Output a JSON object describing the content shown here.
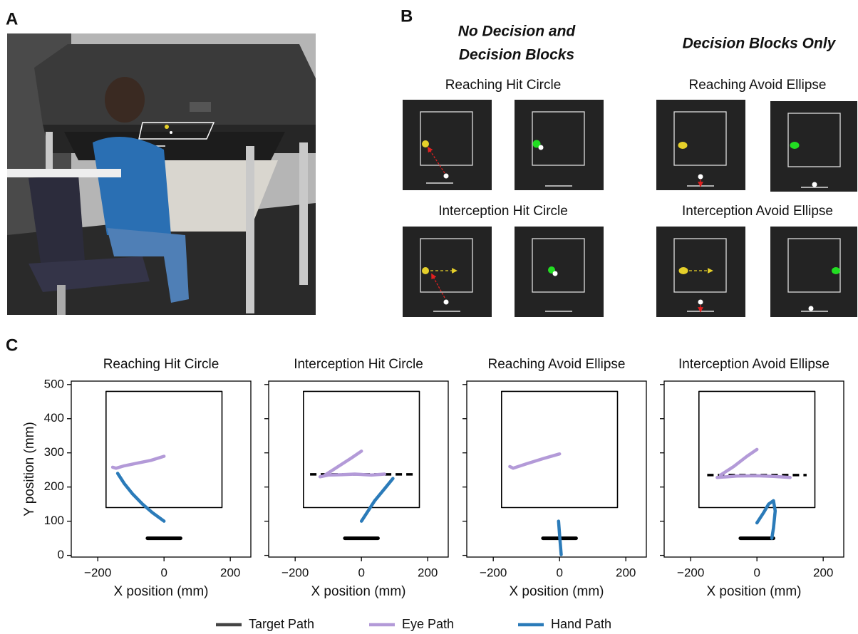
{
  "panel_labels": [
    "A",
    "B",
    "C"
  ],
  "panel_b": {
    "heading_left": [
      "No Decision and",
      "Decision Blocks"
    ],
    "heading_right": "Decision Blocks Only",
    "conditions": [
      "Reaching Hit Circle",
      "Reaching Avoid Ellipse",
      "Interception Hit Circle",
      "Interception Avoid Ellipse"
    ]
  },
  "legend": [
    {
      "name": "Target Path",
      "color": "#444444"
    },
    {
      "name": "Eye Path",
      "color": "#b39ad8"
    },
    {
      "name": "Hand Path",
      "color": "#2b7bb9"
    }
  ],
  "chart_data": [
    {
      "type": "line",
      "title": "Reaching Hit Circle",
      "xlabel": "X position (mm)",
      "ylabel": "Y position (mm)",
      "show_ytick_labels": true,
      "xlim": [
        -280,
        262
      ],
      "ylim": [
        -5,
        510
      ],
      "xticks": [
        {
          "value": -200,
          "label": "−200"
        },
        0,
        200
      ],
      "yticks": [
        0,
        100,
        200,
        300,
        400,
        500
      ],
      "series": [
        {
          "color": "#000000",
          "width": 1.6,
          "dashed": false,
          "x": [
            -175,
            175,
            175,
            -175,
            -175
          ],
          "values": [
            140,
            140,
            480,
            480,
            140
          ]
        },
        {
          "color": "#000000",
          "width": 5,
          "dashed": false,
          "x": [
            -50,
            50
          ],
          "values": [
            50,
            50
          ]
        },
        {
          "color": "#b39ad8",
          "width": 4.5,
          "dashed": false,
          "x": [
            -155,
            -145,
            -120,
            -80,
            -40,
            0
          ],
          "values": [
            258,
            255,
            262,
            270,
            278,
            290
          ]
        },
        {
          "color": "#2b7bb9",
          "width": 4.5,
          "dashed": false,
          "x": [
            -140,
            -120,
            -95,
            -65,
            -35,
            0
          ],
          "values": [
            240,
            210,
            180,
            150,
            125,
            100
          ]
        }
      ]
    },
    {
      "type": "line",
      "title": "Interception Hit Circle",
      "xlabel": "X position (mm)",
      "show_ytick_labels": false,
      "xlim": [
        -280,
        262
      ],
      "ylim": [
        -5,
        510
      ],
      "xticks": [
        {
          "value": -200,
          "label": "−200"
        },
        0,
        200
      ],
      "yticks": [
        0,
        100,
        200,
        300,
        400,
        500
      ],
      "series": [
        {
          "color": "#000000",
          "width": 1.6,
          "dashed": false,
          "x": [
            -175,
            175,
            175,
            -175,
            -175
          ],
          "values": [
            140,
            140,
            480,
            480,
            140
          ]
        },
        {
          "color": "#000000",
          "width": 5,
          "dashed": false,
          "x": [
            -50,
            50
          ],
          "values": [
            50,
            50
          ]
        },
        {
          "color": "#000000",
          "width": 3.5,
          "dashed": true,
          "x": [
            -155,
            155
          ],
          "values": [
            237,
            237
          ]
        },
        {
          "color": "#b39ad8",
          "width": 4.5,
          "dashed": false,
          "x": [
            -110,
            -70,
            -30,
            0,
            null,
            -125,
            -100,
            -60,
            -20,
            30,
            70
          ],
          "values": [
            235,
            260,
            285,
            305,
            null,
            230,
            235,
            236,
            238,
            235,
            238
          ]
        },
        {
          "color": "#2b7bb9",
          "width": 4.5,
          "dashed": false,
          "x": [
            0,
            20,
            40,
            70,
            95
          ],
          "values": [
            100,
            130,
            160,
            195,
            225
          ]
        }
      ]
    },
    {
      "type": "line",
      "title": "Reaching Avoid Ellipse",
      "xlabel": "X position (mm)",
      "show_ytick_labels": false,
      "xlim": [
        -280,
        262
      ],
      "ylim": [
        -5,
        510
      ],
      "xticks": [
        {
          "value": -200,
          "label": "−200"
        },
        0,
        200
      ],
      "yticks": [
        0,
        100,
        200,
        300,
        400,
        500
      ],
      "series": [
        {
          "color": "#000000",
          "width": 1.6,
          "dashed": false,
          "x": [
            -175,
            175,
            175,
            -175,
            -175
          ],
          "values": [
            140,
            140,
            480,
            480,
            140
          ]
        },
        {
          "color": "#000000",
          "width": 5,
          "dashed": false,
          "x": [
            -50,
            50
          ],
          "values": [
            50,
            50
          ]
        },
        {
          "color": "#b39ad8",
          "width": 4.5,
          "dashed": false,
          "x": [
            -150,
            -140,
            -100,
            -50,
            0
          ],
          "values": [
            260,
            255,
            268,
            283,
            297
          ]
        },
        {
          "color": "#2b7bb9",
          "width": 4.5,
          "dashed": false,
          "x": [
            -3,
            1,
            5
          ],
          "values": [
            100,
            50,
            2
          ]
        }
      ]
    },
    {
      "type": "line",
      "title": "Interception Avoid Ellipse",
      "xlabel": "X position (mm)",
      "show_ytick_labels": false,
      "xlim": [
        -280,
        262
      ],
      "ylim": [
        -5,
        510
      ],
      "xticks": [
        {
          "value": -200,
          "label": "−200"
        },
        0,
        200
      ],
      "yticks": [
        0,
        100,
        200,
        300,
        400,
        500
      ],
      "series": [
        {
          "color": "#000000",
          "width": 1.6,
          "dashed": false,
          "x": [
            -175,
            175,
            175,
            -175,
            -175
          ],
          "values": [
            140,
            140,
            480,
            480,
            140
          ]
        },
        {
          "color": "#000000",
          "width": 5,
          "dashed": false,
          "x": [
            -50,
            50
          ],
          "values": [
            50,
            50
          ]
        },
        {
          "color": "#000000",
          "width": 3.5,
          "dashed": true,
          "x": [
            -150,
            150
          ],
          "values": [
            235,
            235
          ]
        },
        {
          "color": "#b39ad8",
          "width": 4.5,
          "dashed": false,
          "x": [
            -110,
            -70,
            -30,
            0,
            null,
            -120,
            -60,
            0,
            50,
            100
          ],
          "values": [
            235,
            260,
            290,
            310,
            null,
            228,
            232,
            233,
            231,
            228
          ]
        },
        {
          "color": "#2b7bb9",
          "width": 4.5,
          "dashed": false,
          "x": [
            0,
            20,
            35,
            50,
            55,
            50,
            45
          ],
          "values": [
            95,
            125,
            150,
            160,
            130,
            80,
            50
          ]
        }
      ]
    }
  ]
}
